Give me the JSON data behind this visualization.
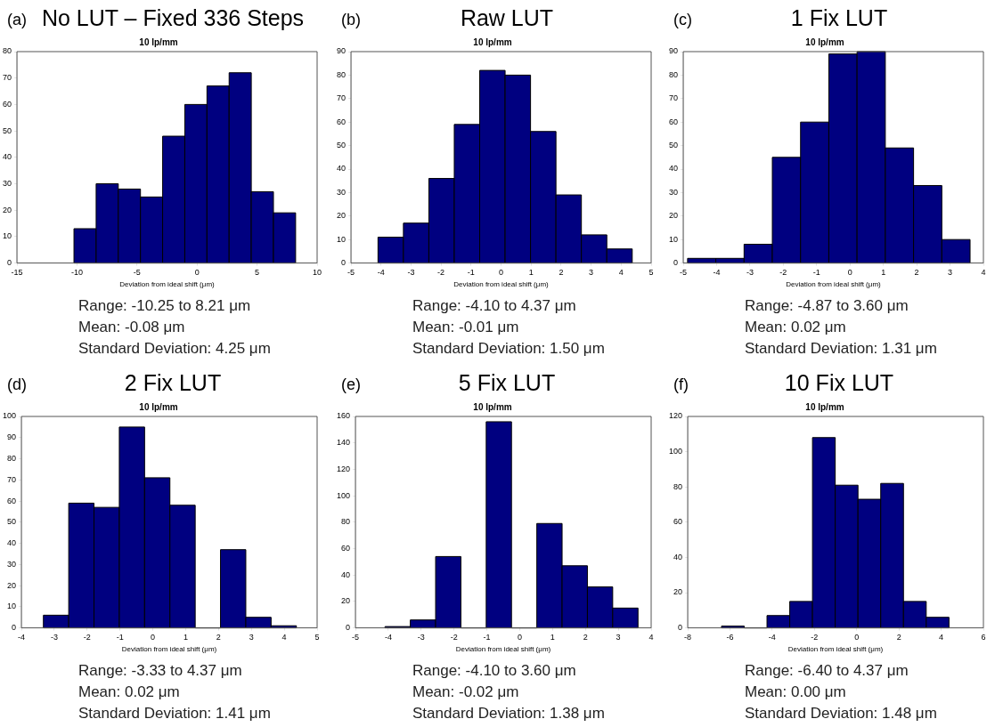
{
  "chart_data": [
    {
      "type": "histogram",
      "title": "No LUT – Fixed 336 Steps",
      "subtitle": "10 lp/mm",
      "xlabel": "Deviation from ideal shift (μm)",
      "color": "#000080",
      "bins": [
        -10.25,
        -8.404,
        -6.558,
        -4.712,
        -2.866,
        -1.02,
        0.826,
        2.672,
        4.518,
        6.364,
        8.21
      ],
      "values": [
        13,
        30,
        28,
        25,
        48,
        60,
        67,
        72,
        27,
        19
      ],
      "xlim": [
        -15,
        10
      ],
      "xticks": [
        -15,
        -10,
        -5,
        0,
        5,
        10
      ],
      "ylim": [
        0,
        80
      ],
      "yticks": [
        0,
        10,
        20,
        30,
        40,
        50,
        60,
        70,
        80
      ],
      "grid": false,
      "legend": false,
      "annotations": [
        "(a)",
        "Range: -10.25 to 8.21 μm",
        "Mean: -0.08 μm",
        "Standard Deviation: 4.25 μm"
      ]
    },
    {
      "type": "histogram",
      "title": "Raw LUT",
      "subtitle": "10 lp/mm",
      "xlabel": "Deviation from ideal shift (μm)",
      "color": "#000080",
      "bins": [
        -4.1,
        -3.253,
        -2.406,
        -1.559,
        -0.712,
        0.135,
        0.982,
        1.829,
        2.676,
        3.523,
        4.37
      ],
      "values": [
        11,
        17,
        36,
        59,
        82,
        80,
        56,
        29,
        12,
        6
      ],
      "xlim": [
        -5,
        5
      ],
      "xticks": [
        -5,
        -4,
        -3,
        -2,
        -1,
        0,
        1,
        2,
        3,
        4,
        5
      ],
      "ylim": [
        0,
        90
      ],
      "yticks": [
        0,
        10,
        20,
        30,
        40,
        50,
        60,
        70,
        80,
        90
      ],
      "grid": false,
      "legend": false,
      "annotations": [
        "(b)",
        "Range: -4.10 to 4.37 μm",
        "Mean: -0.01 μm",
        "Standard Deviation: 1.50 μm"
      ]
    },
    {
      "type": "histogram",
      "title": "1 Fix LUT",
      "subtitle": "10 lp/mm",
      "xlabel": "Deviation from ideal shift (μm)",
      "color": "#000080",
      "bins": [
        -4.87,
        -4.023,
        -3.176,
        -2.329,
        -1.482,
        -0.635,
        0.212,
        1.059,
        1.906,
        2.753,
        3.6
      ],
      "values": [
        2,
        2,
        8,
        45,
        60,
        89,
        90,
        49,
        33,
        10
      ],
      "xlim": [
        -5,
        4
      ],
      "xticks": [
        -5,
        -4,
        -3,
        -2,
        -1,
        0,
        1,
        2,
        3,
        4
      ],
      "ylim": [
        0,
        90
      ],
      "yticks": [
        0,
        10,
        20,
        30,
        40,
        50,
        60,
        70,
        80,
        90
      ],
      "grid": false,
      "legend": false,
      "annotations": [
        "(c)",
        "Range: -4.87 to 3.60 μm",
        "Mean: 0.02 μm",
        "Standard Deviation: 1.31 μm"
      ]
    },
    {
      "type": "histogram",
      "title": "2 Fix LUT",
      "subtitle": "10 lp/mm",
      "xlabel": "Deviation from ideal shift (μm)",
      "color": "#000080",
      "bins": [
        -3.33,
        -2.56,
        -1.79,
        -1.02,
        -0.25,
        0.52,
        1.29,
        2.06,
        2.83,
        3.6,
        4.37
      ],
      "values": [
        6,
        59,
        57,
        95,
        71,
        58,
        0,
        37,
        5,
        1
      ],
      "xlim": [
        -4,
        5
      ],
      "xticks": [
        -4,
        -3,
        -2,
        -1,
        0,
        1,
        2,
        3,
        4,
        5
      ],
      "ylim": [
        0,
        100
      ],
      "yticks": [
        0,
        10,
        20,
        30,
        40,
        50,
        60,
        70,
        80,
        90,
        100
      ],
      "grid": false,
      "legend": false,
      "annotations": [
        "(d)",
        "Range: -3.33 to 4.37 μm",
        "Mean: 0.02 μm",
        "Standard Deviation: 1.41 μm"
      ]
    },
    {
      "type": "histogram",
      "title": "5 Fix LUT",
      "subtitle": "10 lp/mm",
      "xlabel": "Deviation from ideal shift (μm)",
      "color": "#000080",
      "bins": [
        -4.1,
        -3.33,
        -2.56,
        -1.79,
        -1.02,
        -0.25,
        0.52,
        1.29,
        2.06,
        2.83,
        3.6
      ],
      "values": [
        1,
        6,
        54,
        0,
        156,
        0,
        79,
        47,
        31,
        15
      ],
      "xlim": [
        -5,
        4
      ],
      "xticks": [
        -5,
        -4,
        -3,
        -2,
        -1,
        0,
        1,
        2,
        3,
        4
      ],
      "ylim": [
        0,
        160
      ],
      "yticks": [
        0,
        20,
        40,
        60,
        80,
        100,
        120,
        140,
        160
      ],
      "grid": false,
      "legend": false,
      "annotations": [
        "(e)",
        "Range: -4.10 to 3.60 μm",
        "Mean: -0.02 μm",
        "Standard Deviation: 1.38 μm"
      ]
    },
    {
      "type": "histogram",
      "title": "10 Fix LUT",
      "subtitle": "10 lp/mm",
      "xlabel": "Deviation from ideal shift (μm)",
      "color": "#000080",
      "bins": [
        -6.4,
        -5.323,
        -4.246,
        -3.169,
        -2.092,
        -1.015,
        0.062,
        1.139,
        2.216,
        3.293,
        4.37
      ],
      "values": [
        1,
        0,
        7,
        15,
        108,
        81,
        73,
        82,
        15,
        6
      ],
      "xlim": [
        -8,
        6
      ],
      "xticks": [
        -8,
        -6,
        -4,
        -2,
        0,
        2,
        4,
        6
      ],
      "ylim": [
        0,
        120
      ],
      "yticks": [
        0,
        20,
        40,
        60,
        80,
        100,
        120
      ],
      "grid": false,
      "legend": false,
      "annotations": [
        "(f)",
        "Range: -6.40 to 4.37 μm",
        "Mean: 0.00 μm",
        "Standard Deviation: 1.48 μm"
      ]
    }
  ]
}
